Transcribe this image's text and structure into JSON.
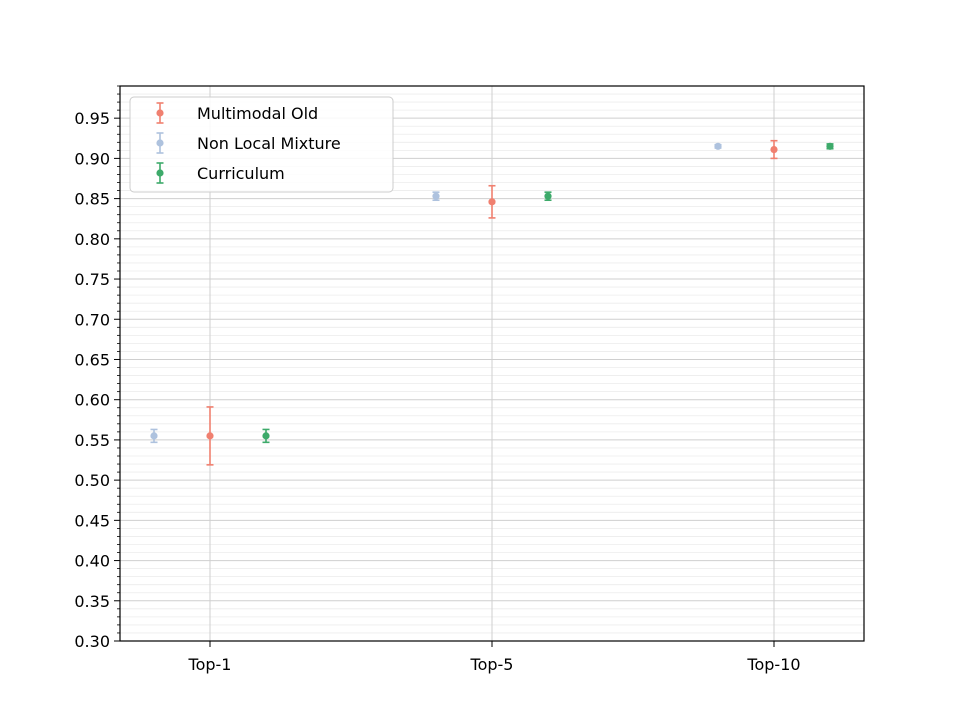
{
  "chart_data": {
    "type": "scatter",
    "subtype": "errorbar",
    "title": "",
    "xlabel": "",
    "ylabel": "",
    "categories": [
      "Top-1",
      "Top-5",
      "Top-10"
    ],
    "ylim": [
      0.3,
      0.99
    ],
    "y_ticks": [
      "0.30",
      "0.35",
      "0.40",
      "0.45",
      "0.50",
      "0.55",
      "0.60",
      "0.65",
      "0.70",
      "0.75",
      "0.80",
      "0.85",
      "0.90",
      "0.95"
    ],
    "grid": "major and minor",
    "legend_position": "top-left",
    "series": [
      {
        "name": "Multimodal Old",
        "color": "#f08070",
        "values": [
          0.555,
          0.846,
          0.911
        ],
        "errors": [
          0.036,
          0.02,
          0.011
        ]
      },
      {
        "name": "Non Local Mixture",
        "color": "#aec2de",
        "values": [
          0.555,
          0.853,
          0.915
        ],
        "errors": [
          0.008,
          0.005,
          0.002
        ]
      },
      {
        "name": "Curriculum",
        "color": "#3daa6a",
        "values": [
          0.555,
          0.853,
          0.915
        ],
        "errors": [
          0.008,
          0.005,
          0.003
        ]
      }
    ]
  }
}
